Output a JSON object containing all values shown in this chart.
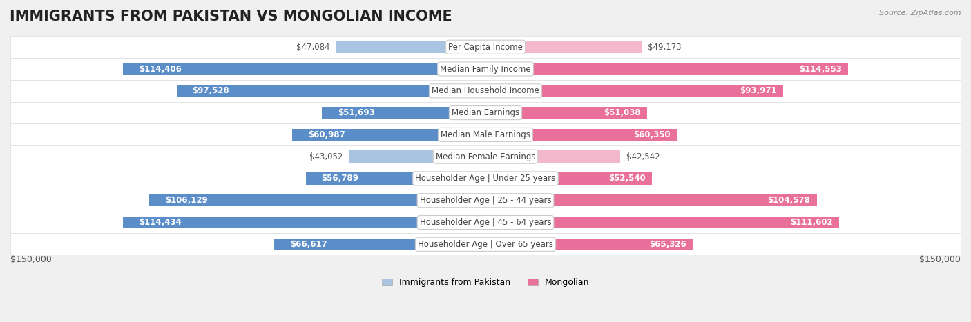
{
  "title": "IMMIGRANTS FROM PAKISTAN VS MONGOLIAN INCOME",
  "source": "Source: ZipAtlas.com",
  "categories": [
    "Per Capita Income",
    "Median Family Income",
    "Median Household Income",
    "Median Earnings",
    "Median Male Earnings",
    "Median Female Earnings",
    "Householder Age | Under 25 years",
    "Householder Age | 25 - 44 years",
    "Householder Age | 45 - 64 years",
    "Householder Age | Over 65 years"
  ],
  "pakistan_values": [
    47084,
    114406,
    97528,
    51693,
    60987,
    43052,
    56789,
    106129,
    114434,
    66617
  ],
  "mongolian_values": [
    49173,
    114553,
    93971,
    51038,
    60350,
    42542,
    52540,
    104578,
    111602,
    65326
  ],
  "pakistan_labels": [
    "$47,084",
    "$114,406",
    "$97,528",
    "$51,693",
    "$60,987",
    "$43,052",
    "$56,789",
    "$106,129",
    "$114,434",
    "$66,617"
  ],
  "mongolian_labels": [
    "$49,173",
    "$114,553",
    "$93,971",
    "$51,038",
    "$60,350",
    "$42,542",
    "$52,540",
    "$104,578",
    "$111,602",
    "$65,326"
  ],
  "pakistan_color_light": "#a8c4e0",
  "pakistan_color_dark": "#5b8dc8",
  "mongolian_color_light": "#f4b8cc",
  "mongolian_color_dark": "#e8709a",
  "max_value": 150000,
  "xlabel": "$150,000",
  "xlabel_right": "$150,000",
  "legend_pakistan": "Immigrants from Pakistan",
  "legend_mongolian": "Mongolian",
  "background_color": "#f0f0f0",
  "row_bg_color": "#f7f7f7",
  "title_fontsize": 15,
  "label_fontsize": 8.5,
  "category_fontsize": 8.5
}
